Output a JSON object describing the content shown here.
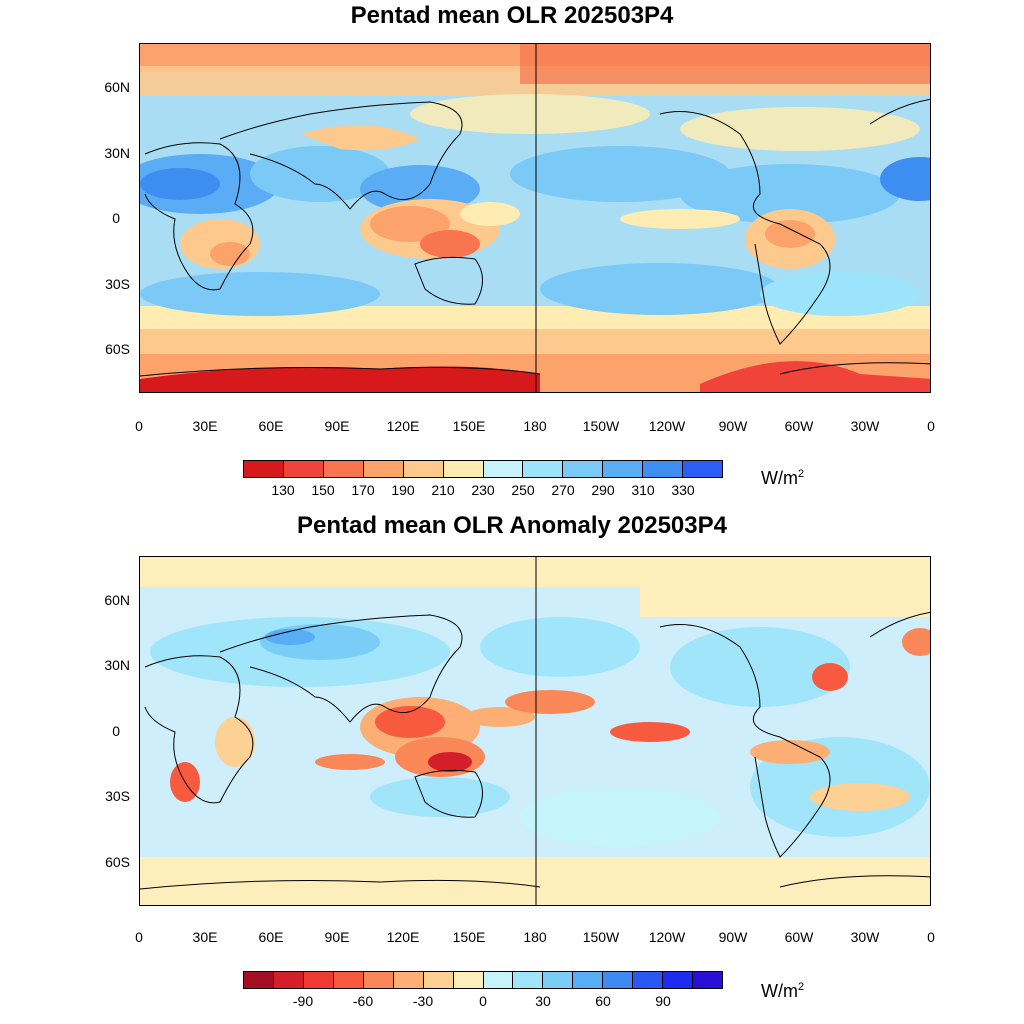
{
  "panels": [
    {
      "title": "Pentad mean OLR 202503P4",
      "units_base": "W/m",
      "units_exp": "2",
      "lat_labels": [
        "60N",
        "30N",
        "0",
        "30S",
        "60S"
      ],
      "lon_labels": [
        "0",
        "30E",
        "60E",
        "90E",
        "120E",
        "150E",
        "180",
        "150W",
        "120W",
        "90W",
        "60W",
        "30W",
        "0"
      ],
      "colorbar": {
        "colors": [
          "#d7191c",
          "#f0433a",
          "#f8754f",
          "#fca26b",
          "#fdc98d",
          "#feecb3",
          "#c6f4fd",
          "#9be4fb",
          "#7ac9f6",
          "#5aacf4",
          "#3e8ef2",
          "#2b5ef2"
        ],
        "labels": [
          "130",
          "150",
          "170",
          "190",
          "210",
          "230",
          "250",
          "270",
          "290",
          "310",
          "330"
        ]
      },
      "field_background": "#a9ddf3"
    },
    {
      "title": "Pentad mean OLR Anomaly 202503P4",
      "units_base": "W/m",
      "units_exp": "2",
      "lat_labels": [
        "60N",
        "30N",
        "0",
        "30S",
        "60S"
      ],
      "lon_labels": [
        "0",
        "30E",
        "60E",
        "90E",
        "120E",
        "150E",
        "180",
        "150W",
        "120W",
        "90W",
        "60W",
        "30W",
        "0"
      ],
      "colorbar": {
        "colors": [
          "#a50f26",
          "#d41e2a",
          "#ef3a33",
          "#f85a3f",
          "#fa8758",
          "#fcae74",
          "#fdd093",
          "#feeebb",
          "#c6f4fd",
          "#a1e5fb",
          "#7acdf6",
          "#58aef4",
          "#3c8af2",
          "#2958f2",
          "#1d2cf0",
          "#2a0fd6"
        ],
        "labels": [
          "-90",
          "-60",
          "-30",
          "0",
          "30",
          "60",
          "90"
        ],
        "label_slots": [
          2,
          4,
          6,
          8,
          10,
          12,
          14
        ]
      },
      "field_background": "#cdeefa"
    }
  ]
}
